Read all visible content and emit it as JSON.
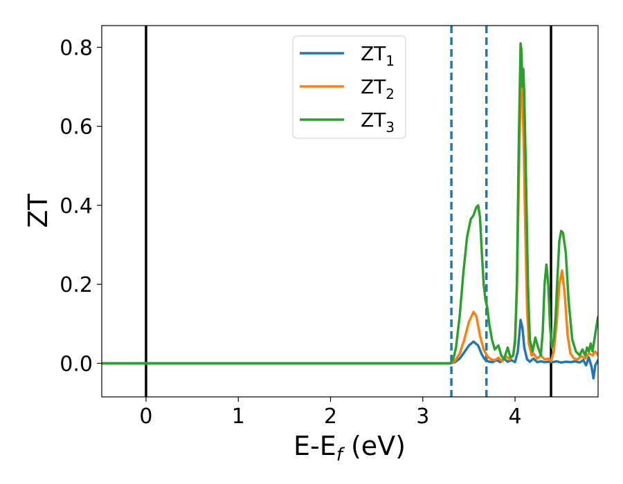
{
  "chart_data": {
    "type": "line",
    "xlabel": "E-E",
    "xlabel_sub": "f",
    "xlabel_unit": " (eV)",
    "ylabel": "ZT",
    "xlim": [
      -0.48,
      4.9
    ],
    "ylim": [
      -0.085,
      0.855
    ],
    "xticks": [
      0,
      1,
      2,
      3,
      4
    ],
    "xtick_labels": [
      "0",
      "1",
      "2",
      "3",
      "4"
    ],
    "yticks": [
      0.0,
      0.2,
      0.4,
      0.6,
      0.8
    ],
    "ytick_labels": [
      "0.0",
      "0.2",
      "0.4",
      "0.6",
      "0.8"
    ],
    "grid": false,
    "legend_position": "top-center",
    "vlines": [
      {
        "x": 0.0,
        "style": "solid",
        "color": "#000000"
      },
      {
        "x": 3.31,
        "style": "dashed",
        "color": "#1f77b4"
      },
      {
        "x": 3.69,
        "style": "dashed",
        "color": "#1f77b4"
      },
      {
        "x": 4.39,
        "style": "solid",
        "color": "#000000"
      }
    ],
    "series": [
      {
        "name": "ZT",
        "sub": "1",
        "color": "#1f77b4",
        "points": [
          [
            -0.48,
            0
          ],
          [
            3.3,
            0
          ],
          [
            3.35,
            0.003
          ],
          [
            3.4,
            0.012
          ],
          [
            3.45,
            0.028
          ],
          [
            3.5,
            0.045
          ],
          [
            3.55,
            0.055
          ],
          [
            3.6,
            0.045
          ],
          [
            3.64,
            0.022
          ],
          [
            3.68,
            0.008
          ],
          [
            3.72,
            0.004
          ],
          [
            3.76,
            0.003
          ],
          [
            3.8,
            0.008
          ],
          [
            3.84,
            0.003
          ],
          [
            3.88,
            0.012
          ],
          [
            3.92,
            0.004
          ],
          [
            3.96,
            0.008
          ],
          [
            4.0,
            0.003
          ],
          [
            4.03,
            0.03
          ],
          [
            4.06,
            0.11
          ],
          [
            4.08,
            0.09
          ],
          [
            4.1,
            0.04
          ],
          [
            4.13,
            0.01
          ],
          [
            4.16,
            0.004
          ],
          [
            4.2,
            0.012
          ],
          [
            4.24,
            0.003
          ],
          [
            4.28,
            0.005
          ],
          [
            4.32,
            0.003
          ],
          [
            4.36,
            0.004
          ],
          [
            4.4,
            0.003
          ],
          [
            4.45,
            0.005
          ],
          [
            4.5,
            0.002
          ],
          [
            4.55,
            0.004
          ],
          [
            4.6,
            0.003
          ],
          [
            4.65,
            0.005
          ],
          [
            4.7,
            0.002
          ],
          [
            4.74,
            0.008
          ],
          [
            4.77,
            -0.005
          ],
          [
            4.8,
            0.015
          ],
          [
            4.83,
            -0.01
          ],
          [
            4.85,
            -0.038
          ],
          [
            4.87,
            -0.005
          ],
          [
            4.9,
            0.008
          ]
        ]
      },
      {
        "name": "ZT",
        "sub": "2",
        "color": "#ff7f0e",
        "points": [
          [
            -0.48,
            0
          ],
          [
            3.3,
            0
          ],
          [
            3.35,
            0.006
          ],
          [
            3.4,
            0.025
          ],
          [
            3.45,
            0.06
          ],
          [
            3.5,
            0.105
          ],
          [
            3.55,
            0.13
          ],
          [
            3.58,
            0.12
          ],
          [
            3.62,
            0.07
          ],
          [
            3.66,
            0.035
          ],
          [
            3.7,
            0.018
          ],
          [
            3.74,
            0.01
          ],
          [
            3.78,
            0.008
          ],
          [
            3.82,
            0.014
          ],
          [
            3.86,
            0.005
          ],
          [
            3.9,
            0.018
          ],
          [
            3.94,
            0.01
          ],
          [
            3.98,
            0.02
          ],
          [
            4.0,
            0.05
          ],
          [
            4.02,
            0.18
          ],
          [
            4.04,
            0.45
          ],
          [
            4.06,
            0.7
          ],
          [
            4.07,
            0.72
          ],
          [
            4.09,
            0.6
          ],
          [
            4.11,
            0.35
          ],
          [
            4.13,
            0.14
          ],
          [
            4.15,
            0.05
          ],
          [
            4.18,
            0.02
          ],
          [
            4.2,
            0.025
          ],
          [
            4.24,
            0.012
          ],
          [
            4.28,
            0.02
          ],
          [
            4.32,
            0.01
          ],
          [
            4.36,
            0.012
          ],
          [
            4.39,
            0.006
          ],
          [
            4.42,
            0.03
          ],
          [
            4.45,
            0.1
          ],
          [
            4.48,
            0.2
          ],
          [
            4.51,
            0.235
          ],
          [
            4.54,
            0.17
          ],
          [
            4.57,
            0.07
          ],
          [
            4.6,
            0.025
          ],
          [
            4.64,
            0.012
          ],
          [
            4.68,
            0.01
          ],
          [
            4.72,
            0.018
          ],
          [
            4.76,
            0.012
          ],
          [
            4.8,
            0.025
          ],
          [
            4.84,
            0.02
          ],
          [
            4.87,
            0.03
          ],
          [
            4.9,
            0.02
          ]
        ]
      },
      {
        "name": "ZT",
        "sub": "3",
        "color": "#2ca02c",
        "points": [
          [
            -0.48,
            0
          ],
          [
            3.3,
            0
          ],
          [
            3.33,
            0.01
          ],
          [
            3.36,
            0.04
          ],
          [
            3.4,
            0.12
          ],
          [
            3.44,
            0.23
          ],
          [
            3.48,
            0.32
          ],
          [
            3.52,
            0.365
          ],
          [
            3.55,
            0.375
          ],
          [
            3.58,
            0.395
          ],
          [
            3.6,
            0.4
          ],
          [
            3.62,
            0.37
          ],
          [
            3.64,
            0.28
          ],
          [
            3.66,
            0.2
          ],
          [
            3.68,
            0.16
          ],
          [
            3.7,
            0.14
          ],
          [
            3.72,
            0.1
          ],
          [
            3.75,
            0.06
          ],
          [
            3.78,
            0.035
          ],
          [
            3.82,
            0.045
          ],
          [
            3.85,
            0.02
          ],
          [
            3.88,
            0.01
          ],
          [
            3.92,
            0.04
          ],
          [
            3.95,
            0.015
          ],
          [
            3.98,
            0.02
          ],
          [
            4.0,
            0.06
          ],
          [
            4.02,
            0.2
          ],
          [
            4.04,
            0.55
          ],
          [
            4.06,
            0.81
          ],
          [
            4.07,
            0.79
          ],
          [
            4.08,
            0.7
          ],
          [
            4.09,
            0.745
          ],
          [
            4.1,
            0.68
          ],
          [
            4.12,
            0.45
          ],
          [
            4.14,
            0.2
          ],
          [
            4.16,
            0.06
          ],
          [
            4.19,
            0.03
          ],
          [
            4.22,
            0.065
          ],
          [
            4.25,
            0.04
          ],
          [
            4.28,
            0.02
          ],
          [
            4.3,
            0.08
          ],
          [
            4.32,
            0.2
          ],
          [
            4.34,
            0.25
          ],
          [
            4.36,
            0.2
          ],
          [
            4.38,
            0.09
          ],
          [
            4.4,
            0.04
          ],
          [
            4.42,
            0.06
          ],
          [
            4.44,
            0.12
          ],
          [
            4.46,
            0.22
          ],
          [
            4.48,
            0.31
          ],
          [
            4.5,
            0.335
          ],
          [
            4.52,
            0.33
          ],
          [
            4.55,
            0.28
          ],
          [
            4.58,
            0.16
          ],
          [
            4.62,
            0.06
          ],
          [
            4.66,
            0.03
          ],
          [
            4.7,
            0.02
          ],
          [
            4.73,
            0.035
          ],
          [
            4.76,
            0.02
          ],
          [
            4.78,
            0.04
          ],
          [
            4.8,
            0.03
          ],
          [
            4.82,
            0.05
          ],
          [
            4.84,
            0.03
          ],
          [
            4.86,
            0.06
          ],
          [
            4.88,
            0.09
          ],
          [
            4.9,
            0.118
          ]
        ]
      }
    ]
  }
}
